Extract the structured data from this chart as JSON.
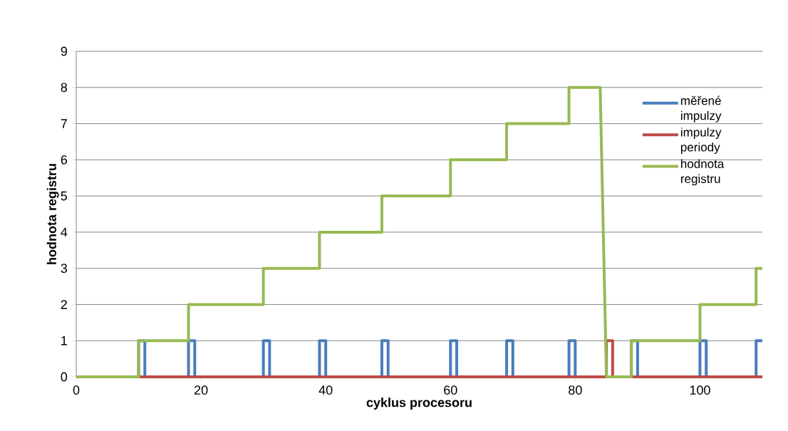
{
  "chart_data": {
    "type": "line",
    "xlabel": "cyklus procesoru",
    "ylabel": "hodnota registru",
    "xlim": [
      0,
      110
    ],
    "ylim": [
      0,
      9
    ],
    "xticks": [
      0,
      20,
      40,
      60,
      80,
      100
    ],
    "yticks": [
      0,
      1,
      2,
      3,
      4,
      5,
      6,
      7,
      8,
      9
    ],
    "grid": "y",
    "legend": "right",
    "marker": "none",
    "line_style": "solid",
    "series": [
      {
        "name": "měřené impulzy",
        "color": "#4a7ebb",
        "x": [
          10,
          10,
          11,
          11,
          18,
          18,
          19,
          19,
          30,
          30,
          31,
          31,
          39,
          39,
          40,
          40,
          49,
          49,
          50,
          50,
          60,
          60,
          61,
          61,
          69,
          69,
          70,
          70,
          79,
          79,
          80,
          80,
          89,
          89,
          90,
          90,
          100,
          100,
          101,
          101,
          109,
          109,
          110
        ],
        "values": [
          0,
          1,
          1,
          0,
          0,
          1,
          1,
          0,
          0,
          1,
          1,
          0,
          0,
          1,
          1,
          0,
          0,
          1,
          1,
          0,
          0,
          1,
          1,
          0,
          0,
          1,
          1,
          0,
          0,
          1,
          1,
          0,
          0,
          1,
          1,
          0,
          0,
          1,
          1,
          0,
          0,
          1,
          1
        ]
      },
      {
        "name": "impulzy periody",
        "color": "#be4b48",
        "x": [
          10,
          85,
          85,
          86,
          86,
          110
        ],
        "values": [
          0,
          0,
          1,
          1,
          0,
          0
        ]
      },
      {
        "name": "hodnota registru",
        "color": "#98b954",
        "x": [
          0,
          10,
          10,
          18,
          18,
          30,
          30,
          39,
          39,
          49,
          49,
          60,
          60,
          69,
          69,
          79,
          79,
          84,
          85,
          89,
          89,
          100,
          100,
          109,
          109,
          110
        ],
        "values": [
          0,
          0,
          1,
          1,
          2,
          2,
          3,
          3,
          4,
          4,
          5,
          5,
          6,
          6,
          7,
          7,
          8,
          8,
          0,
          0,
          1,
          1,
          2,
          2,
          3,
          3
        ]
      }
    ]
  }
}
